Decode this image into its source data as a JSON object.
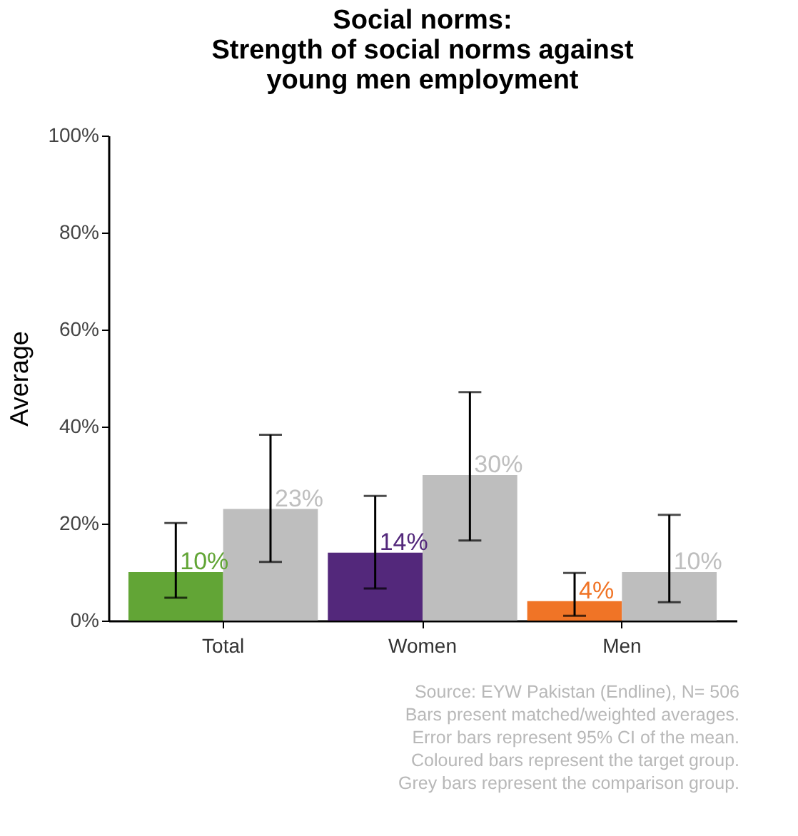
{
  "chart_data": {
    "type": "bar",
    "title": [
      "Social norms:",
      "Strength of social norms against",
      "young men employment"
    ],
    "ylabel": "Average",
    "categories": [
      "Total",
      "Women",
      "Men"
    ],
    "series": [
      {
        "colors": [
          "#62a536",
          "#53287b",
          "#f07426"
        ],
        "values": [
          10,
          14,
          4
        ],
        "value_labels": [
          "10%",
          "14%",
          "4%"
        ],
        "errors": [
          [
            4.7,
            20.1
          ],
          [
            6.6,
            25.7
          ],
          [
            1.0,
            9.8
          ]
        ]
      },
      {
        "color": "#bebebe",
        "values": [
          23,
          30,
          10
        ],
        "value_labels": [
          "23%",
          "30%",
          "10%"
        ],
        "errors": [
          [
            12.1,
            38.3
          ],
          [
            16.5,
            47.1
          ],
          [
            3.8,
            21.8
          ]
        ]
      }
    ],
    "ylim": [
      0,
      100
    ],
    "yticks": [
      {
        "value": 0,
        "label": "0%"
      },
      {
        "value": 20,
        "label": "20%"
      },
      {
        "value": 40,
        "label": "40%"
      },
      {
        "value": 60,
        "label": "60%"
      },
      {
        "value": 80,
        "label": "80%"
      },
      {
        "value": 100,
        "label": "100%"
      }
    ],
    "grid": false,
    "annotations": [
      "Source: EYW Pakistan (Endline), N= 506",
      "Bars present matched/weighted averages.",
      "Error bars represent 95% CI of the mean.",
      "Coloured bars represent the target group.",
      "Grey bars represent the comparison group."
    ]
  }
}
